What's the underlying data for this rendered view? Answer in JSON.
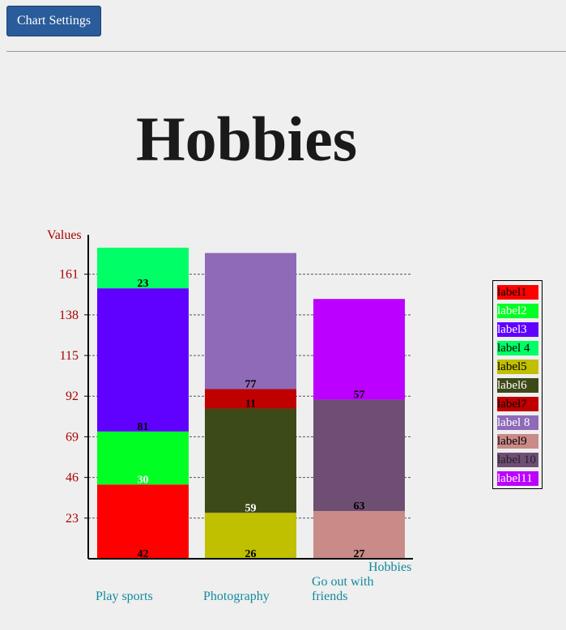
{
  "toolbar": {
    "settings_label": "Chart Settings"
  },
  "chart_data": {
    "type": "bar",
    "stacked": true,
    "title": "Hobbies",
    "ylabel": "Values",
    "xlabel": "Hobbies",
    "ylim": [
      0,
      184
    ],
    "yticks": [
      23,
      46,
      69,
      92,
      115,
      138,
      161
    ],
    "grid": true,
    "legend_position": "right",
    "categories": [
      "Play sports",
      "Photography",
      "Go out with friends"
    ],
    "series": [
      {
        "name": "label1",
        "color": "#ff0000",
        "values": [
          42,
          0,
          0
        ]
      },
      {
        "name": "label2",
        "color": "#00ff22",
        "values": [
          30,
          0,
          0
        ]
      },
      {
        "name": "label3",
        "color": "#6000ff",
        "values": [
          81,
          0,
          0
        ]
      },
      {
        "name": "label 4",
        "color": "#00ff66",
        "values": [
          23,
          0,
          0
        ]
      },
      {
        "name": "label5",
        "color": "#c0c000",
        "values": [
          0,
          26,
          0
        ]
      },
      {
        "name": "label6",
        "color": "#3c4a18",
        "values": [
          0,
          59,
          0
        ]
      },
      {
        "name": "label7",
        "color": "#c00000",
        "values": [
          0,
          11,
          0
        ]
      },
      {
        "name": "label 8",
        "color": "#8e6ab8",
        "values": [
          0,
          77,
          0
        ]
      },
      {
        "name": "label9",
        "color": "#c98b88",
        "values": [
          0,
          0,
          27
        ]
      },
      {
        "name": "label 10",
        "color": "#6f4e74",
        "values": [
          0,
          0,
          63
        ]
      },
      {
        "name": "label11",
        "color": "#bb00ff",
        "values": [
          0,
          0,
          57
        ]
      }
    ],
    "colors": {
      "axis_label": "#aa0000",
      "category_label": "#108a9c",
      "value_label_dark": "#000000",
      "value_label_light": "#ffffff"
    }
  }
}
